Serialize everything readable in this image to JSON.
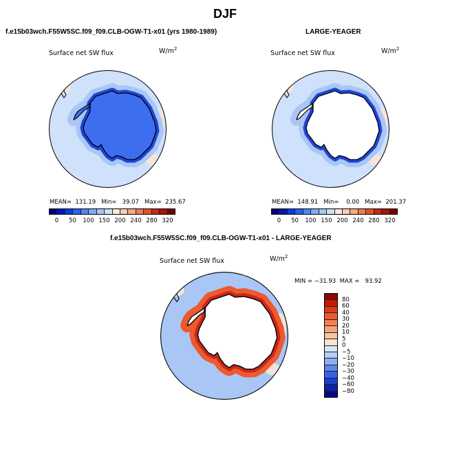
{
  "figure": {
    "title": "DJF"
  },
  "panels": [
    {
      "id": "left",
      "title": "f.e15b03wch.F55W5SC.f09_f09.CLB-OGW-T1-x01 (yrs 1980-1989)",
      "subtitle": "Surface net SW flux",
      "units_base": "W/m",
      "units_exp": "2",
      "stats_text": "MEAN=  131.19   Min=   39.07   Max=  235.67"
    },
    {
      "id": "right",
      "title": "LARGE-YEAGER",
      "subtitle": "Surface net SW flux",
      "units_base": "W/m",
      "units_exp": "2",
      "stats_text": "MEAN=  148.91   Min=    0.00   Max=  201.37"
    },
    {
      "id": "diff",
      "title": "f.e15b03wch.F55W5SC.f09_f09.CLB-OGW-T1-x01 - LARGE-YEAGER",
      "subtitle": "Surface net SW flux",
      "units_base": "W/m",
      "units_exp": "2",
      "stats_text": "MIN = −31.93  MAX =   93.92"
    }
  ],
  "colorbars": {
    "absolute": {
      "labels": [
        "0",
        "50",
        "100",
        "150",
        "200",
        "240",
        "280",
        "320"
      ],
      "colors": [
        "#00007a",
        "#0016b8",
        "#0a3ae6",
        "#2e5ff2",
        "#5684f0",
        "#84aaf2",
        "#a9c6f5",
        "#cde0fa",
        "#fce8d8",
        "#f9cdb3",
        "#f5a884",
        "#ef7d55",
        "#e3522d",
        "#c52a14",
        "#a4150a",
        "#7a0000"
      ]
    },
    "difference": {
      "labels": [
        "80",
        "60",
        "40",
        "30",
        "20",
        "10",
        "5",
        "0",
        "−5",
        "−10",
        "−20",
        "−30",
        "−40",
        "−60",
        "−80"
      ],
      "colors": [
        "#8c0a00",
        "#c21c08",
        "#e03b18",
        "#ed5a30",
        "#f3804f",
        "#f6a47c",
        "#f9c4a5",
        "#fde3cf",
        "#d6e6fb",
        "#b4cef7",
        "#8aaef2",
        "#5f88ec",
        "#3563e6",
        "#1a40d0",
        "#0e21a8",
        "#060a82"
      ]
    }
  },
  "maps": {
    "left": {
      "ocean": "#cfe1fb",
      "inner_ring": "#a9c6f5",
      "continent": "#3d6ef0",
      "shelf": "#1f46d8",
      "patch": "#fbe6d6"
    },
    "right": {
      "ocean": "#cfe1fb",
      "inner_ring": "#a9c6f5",
      "continent": "#ffffff",
      "shelf": "#2244d6",
      "patch": "#fbe6d6"
    },
    "diff": {
      "ocean": "#a9c6f5",
      "inner_ring": "#ec5a2e",
      "continent": "#ffffff",
      "shelf": "#c8281a",
      "patch": "#fbe6d6"
    }
  }
}
